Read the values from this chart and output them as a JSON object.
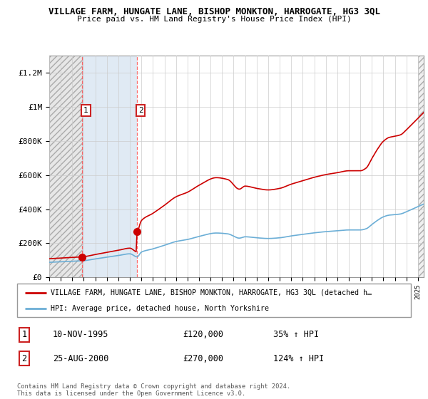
{
  "title": "VILLAGE FARM, HUNGATE LANE, BISHOP MONKTON, HARROGATE, HG3 3QL",
  "subtitle": "Price paid vs. HM Land Registry's House Price Index (HPI)",
  "ylim": [
    0,
    1300000
  ],
  "yticks": [
    0,
    200000,
    400000,
    600000,
    800000,
    1000000,
    1200000
  ],
  "ytick_labels": [
    "£0",
    "£200K",
    "£400K",
    "£600K",
    "£800K",
    "£1M",
    "£1.2M"
  ],
  "year_start": 1993,
  "year_end": 2025,
  "sale1_year": 1995,
  "sale1_month": 11,
  "sale1_price": 120000,
  "sale2_year": 2000,
  "sale2_month": 8,
  "sale2_price": 270000,
  "hpi_line_color": "#6baed6",
  "price_line_color": "#cc0000",
  "sale_marker_color": "#cc0000",
  "shade1_color": "#d0d0d0",
  "shade2_color": "#ccdded",
  "legend_line1": "VILLAGE FARM, HUNGATE LANE, BISHOP MONKTON, HARROGATE, HG3 3QL (detached h…",
  "legend_line2": "HPI: Average price, detached house, North Yorkshire",
  "table_row1": [
    "1",
    "10-NOV-1995",
    "£120,000",
    "35% ↑ HPI"
  ],
  "table_row2": [
    "2",
    "25-AUG-2000",
    "£270,000",
    "124% ↑ HPI"
  ],
  "footnote": "Contains HM Land Registry data © Crown copyright and database right 2024.\nThis data is licensed under the Open Government Licence v3.0.",
  "background_color": "#ffffff"
}
